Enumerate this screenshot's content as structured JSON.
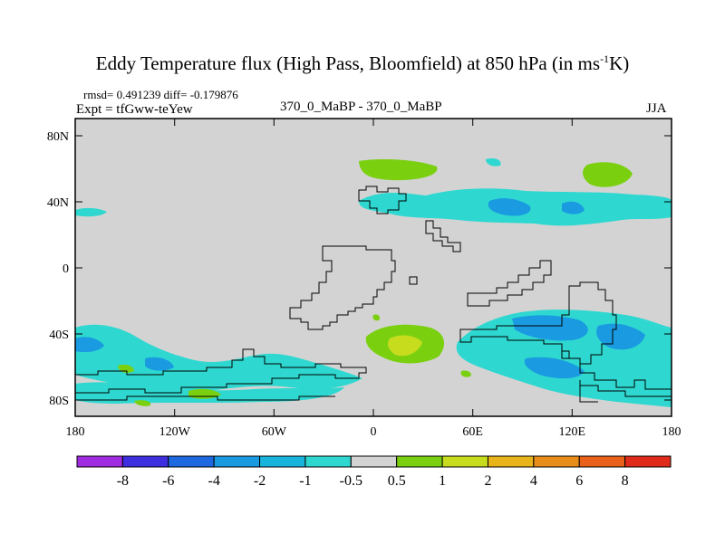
{
  "title": "Eddy Temperature flux (High Pass, Bloomfield) at 850 hPa (in ms",
  "title_sup": "-1",
  "title_tail": "K)",
  "stats": "rmsd= 0.491239 diff= -0.179876",
  "expt": "Expt = tfGww-teYew",
  "case": "370_0_MaBP - 370_0_MaBP",
  "season": "JJA",
  "map": {
    "projection": "cylindrical-equidistant",
    "lon_range": [
      -180,
      180
    ],
    "lat_range": [
      -90,
      90
    ],
    "background_color": "#d3d3d3",
    "x_tick_labels": [
      "180",
      "120W",
      "60W",
      "0",
      "60E",
      "120E",
      "180"
    ],
    "y_tick_labels": [
      "80N",
      "40N",
      "0",
      "40S",
      "80S"
    ]
  },
  "colorbar": {
    "labels": [
      "-8",
      "-6",
      "-4",
      "-2",
      "-1",
      "-0.5",
      "0.5",
      "1",
      "2",
      "4",
      "6",
      "8"
    ],
    "colors": [
      "#9f2ce0",
      "#3d2ee0",
      "#1e68e0",
      "#1a9ae0",
      "#19b4dc",
      "#2ed8d0",
      "#d3d3d3",
      "#7ad00f",
      "#c8dc1e",
      "#e8b41a",
      "#e88c1a",
      "#e8601a",
      "#e02a1a"
    ]
  }
}
